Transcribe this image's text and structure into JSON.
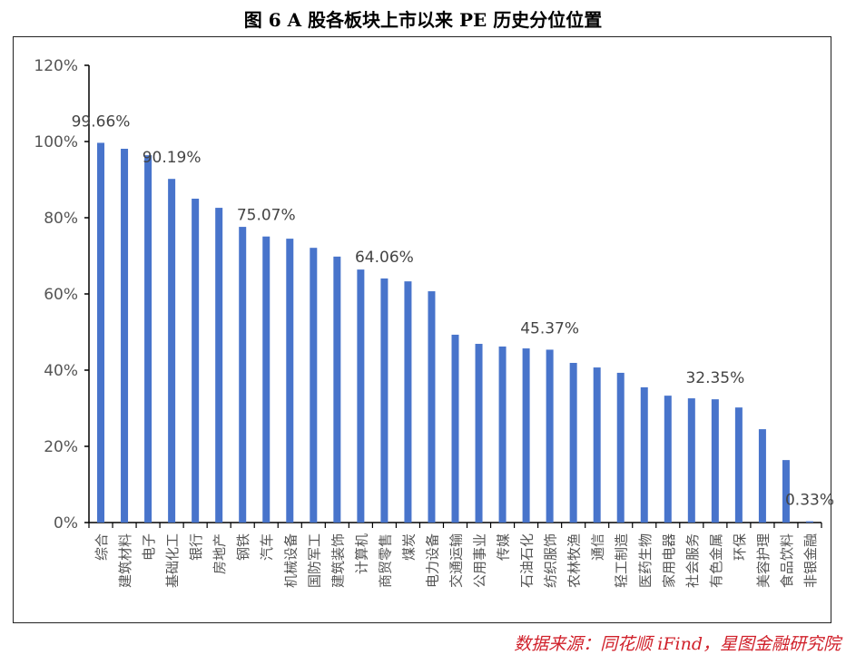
{
  "chart_data": {
    "type": "bar",
    "title": "图 6 A 股各板块上市以来 PE 历史分位位置",
    "xlabel": "",
    "ylabel": "",
    "ylim": [
      0,
      120
    ],
    "yticks": [
      "0%",
      "20%",
      "40%",
      "60%",
      "80%",
      "100%",
      "120%"
    ],
    "grid": false,
    "categories": [
      "综合",
      "建筑材料",
      "电子",
      "基础化工",
      "银行",
      "房地产",
      "钢铁",
      "汽车",
      "机械设备",
      "国防军工",
      "建筑装饰",
      "计算机",
      "商贸零售",
      "煤炭",
      "电力设备",
      "交通运输",
      "公用事业",
      "传媒",
      "石油石化",
      "纺织服饰",
      "农林牧渔",
      "通信",
      "轻工制造",
      "医药生物",
      "家用电器",
      "社会服务",
      "有色金属",
      "环保",
      "美容护理",
      "食品饮料",
      "非银金融"
    ],
    "values": [
      99.66,
      98.1,
      96.4,
      90.19,
      85.0,
      82.6,
      77.6,
      75.07,
      74.5,
      72.1,
      69.8,
      66.4,
      64.06,
      63.3,
      60.7,
      49.3,
      46.9,
      46.2,
      45.7,
      45.37,
      41.9,
      40.7,
      39.3,
      35.5,
      33.3,
      32.6,
      32.35,
      30.2,
      24.5,
      16.4,
      0.33
    ],
    "data_labels": [
      {
        "index": 0,
        "text": "99.66%"
      },
      {
        "index": 3,
        "text": "90.19%"
      },
      {
        "index": 7,
        "text": "75.07%"
      },
      {
        "index": 12,
        "text": "64.06%"
      },
      {
        "index": 19,
        "text": "45.37%"
      },
      {
        "index": 26,
        "text": "32.35%"
      },
      {
        "index": 30,
        "text": "0.33%"
      }
    ],
    "bar_color": "#4874cb"
  },
  "source": "数据来源：同花顺 iFind，星图金融研究院"
}
